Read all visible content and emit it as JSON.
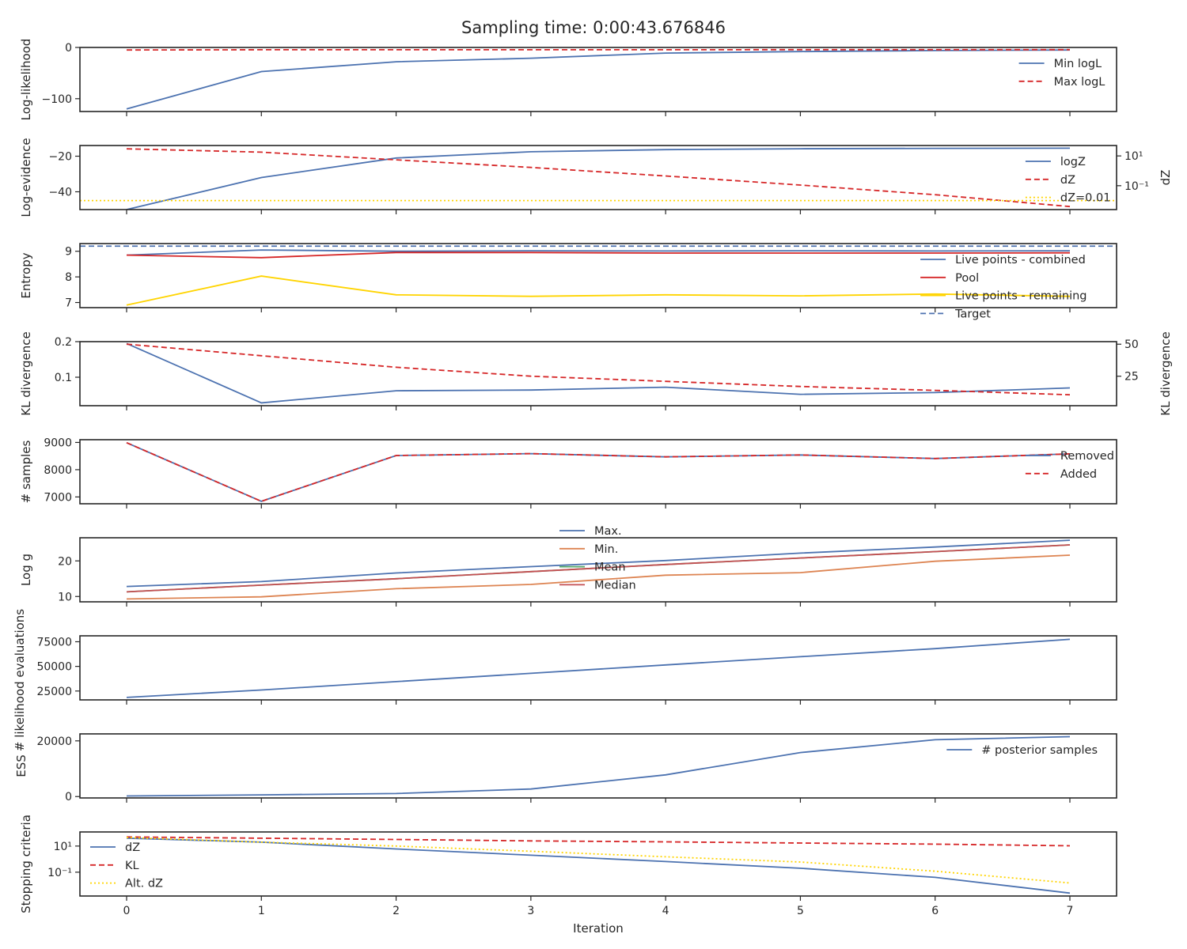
{
  "title": "Sampling time: 0:00:43.676846",
  "xlabel": "Iteration",
  "x_ticks": [
    "0",
    "1",
    "2",
    "3",
    "4",
    "5",
    "6",
    "7"
  ],
  "chart_data": [
    {
      "type": "line",
      "ylabel": "Log-likelihood",
      "ylim": [
        -125,
        0
      ],
      "yticks": [
        {
          "v": 0,
          "label": "0"
        },
        {
          "v": -100,
          "label": "−100"
        }
      ],
      "legend_loc": "right",
      "x": [
        0,
        1,
        2,
        3,
        4,
        5,
        6,
        7
      ],
      "series": [
        {
          "name": "Min logL",
          "color": "#4c72b0",
          "dash": "solid",
          "values": [
            -120,
            -47,
            -28,
            -21,
            -11,
            -8,
            -6,
            -5
          ]
        },
        {
          "name": "Max logL",
          "color": "#d62728",
          "dash": "dashed",
          "values": [
            -5,
            -4.5,
            -4.5,
            -4.5,
            -4.4,
            -4.3,
            -4.3,
            -4.3
          ]
        }
      ]
    },
    {
      "type": "line",
      "ylabel": "Log-evidence",
      "ylim": [
        -50,
        -14
      ],
      "yticks": [
        {
          "v": -20,
          "label": "−20"
        },
        {
          "v": -40,
          "label": "−40"
        }
      ],
      "y2label": "dZ",
      "y2scale": "log",
      "y2lim": [
        0.0025,
        50
      ],
      "y2ticks": [
        {
          "v": 10,
          "label": "10¹"
        },
        {
          "v": 0.1,
          "label": "10⁻¹"
        }
      ],
      "legend_loc": "right",
      "x": [
        0,
        1,
        2,
        3,
        4,
        5,
        6,
        7
      ],
      "series": [
        {
          "name": "logZ",
          "color": "#4c72b0",
          "dash": "solid",
          "axis": "left",
          "values": [
            -50,
            -32,
            -21,
            -17.5,
            -16.3,
            -15.8,
            -15.6,
            -15.5
          ]
        },
        {
          "name": "dZ",
          "color": "#d62728",
          "dash": "dashed",
          "axis": "right",
          "values": [
            30,
            18,
            5.5,
            1.7,
            0.45,
            0.11,
            0.025,
            0.004
          ]
        },
        {
          "name": "dZ=0.01",
          "color": "#ffd400",
          "dash": "dotted",
          "axis": "right",
          "hline": 0.01
        }
      ]
    },
    {
      "type": "line",
      "ylabel": "Entropy",
      "ylim": [
        6.8,
        9.3
      ],
      "yticks": [
        {
          "v": 9,
          "label": "9"
        },
        {
          "v": 8,
          "label": "8"
        },
        {
          "v": 7,
          "label": "7"
        }
      ],
      "legend_loc": "right",
      "x": [
        0,
        1,
        2,
        3,
        4,
        5,
        6,
        7
      ],
      "series": [
        {
          "name": "Live points - combined",
          "color": "#4c72b0",
          "dash": "solid",
          "values": [
            8.85,
            9.05,
            9.0,
            9.02,
            9.01,
            9.02,
            9.01,
            9.02
          ]
        },
        {
          "name": "Pool",
          "color": "#d62728",
          "dash": "solid",
          "values": [
            8.85,
            8.75,
            8.95,
            8.95,
            8.93,
            8.93,
            8.93,
            8.94
          ]
        },
        {
          "name": "Live points - remaining",
          "color": "#ffd400",
          "dash": "solid",
          "values": [
            6.9,
            8.03,
            7.3,
            7.24,
            7.3,
            7.26,
            7.33,
            7.24
          ]
        },
        {
          "name": "Target",
          "color": "#4c72b0",
          "dash": "dashed",
          "hline": 9.2
        }
      ]
    },
    {
      "type": "line",
      "ylabel": "KL divergence",
      "ylim": [
        0.02,
        0.2
      ],
      "yticks": [
        {
          "v": 0.2,
          "label": "0.2"
        },
        {
          "v": 0.1,
          "label": "0.1"
        }
      ],
      "y2label": "KL divergence",
      "y2lim": [
        2,
        52
      ],
      "y2ticks": [
        {
          "v": 50,
          "label": "50"
        },
        {
          "v": 25,
          "label": "25"
        }
      ],
      "x": [
        0,
        1,
        2,
        3,
        4,
        5,
        6,
        7
      ],
      "series": [
        {
          "color": "#4c72b0",
          "dash": "solid",
          "axis": "left",
          "values": [
            0.195,
            0.028,
            0.062,
            0.064,
            0.072,
            0.052,
            0.057,
            0.07
          ]
        },
        {
          "color": "#d62728",
          "dash": "dashed",
          "axis": "right",
          "values": [
            50,
            41,
            32,
            25,
            21,
            17,
            14,
            10.5
          ]
        }
      ]
    },
    {
      "type": "line",
      "ylabel": "# samples",
      "ylim": [
        6750,
        9100
      ],
      "yticks": [
        {
          "v": 9000,
          "label": "9000"
        },
        {
          "v": 8000,
          "label": "8000"
        },
        {
          "v": 7000,
          "label": "7000"
        }
      ],
      "legend_loc": "right",
      "x": [
        0,
        1,
        2,
        3,
        4,
        5,
        6,
        7
      ],
      "series": [
        {
          "name": "Removed",
          "color": "#4c72b0",
          "dash": "solid",
          "values": [
            8990,
            6840,
            8520,
            8590,
            8470,
            8540,
            8410,
            8580
          ]
        },
        {
          "name": "Added",
          "color": "#d62728",
          "dash": "dashed",
          "values": [
            8990,
            6840,
            8520,
            8590,
            8470,
            8540,
            8410,
            8580
          ]
        }
      ]
    },
    {
      "type": "line",
      "ylabel": "Log g",
      "ylim": [
        8.5,
        26.5
      ],
      "yticks": [
        {
          "v": 20,
          "label": "20"
        },
        {
          "v": 10,
          "label": "10"
        }
      ],
      "legend_loc": "upper center",
      "x": [
        0,
        1,
        2,
        3,
        4,
        5,
        6,
        7
      ],
      "series": [
        {
          "name": "Max.",
          "color": "#4c72b0",
          "dash": "solid",
          "values": [
            12.8,
            14.2,
            16.6,
            18.4,
            20.1,
            22.2,
            23.9,
            25.8
          ]
        },
        {
          "name": "Min.",
          "color": "#dd8452",
          "dash": "solid",
          "values": [
            9.3,
            9.9,
            12.2,
            13.4,
            16.0,
            16.7,
            19.9,
            21.6
          ]
        },
        {
          "name": "Mean",
          "color": "#55a868",
          "dash": "solid",
          "values": [
            11.3,
            13.2,
            15.0,
            17.0,
            19.0,
            20.8,
            22.6,
            24.5
          ]
        },
        {
          "name": "Median",
          "color": "#c44e52",
          "dash": "solid",
          "values": [
            11.3,
            13.2,
            15.0,
            17.0,
            19.0,
            20.8,
            22.6,
            24.5
          ]
        }
      ]
    },
    {
      "type": "line",
      "ylabel": "# likelihood evaluations",
      "ylim": [
        16000,
        81000
      ],
      "yticks": [
        {
          "v": 75000,
          "label": "75000"
        },
        {
          "v": 50000,
          "label": "50000"
        },
        {
          "v": 25000,
          "label": "25000"
        }
      ],
      "x": [
        0,
        1,
        2,
        3,
        4,
        5,
        6,
        7
      ],
      "series": [
        {
          "color": "#4c72b0",
          "dash": "solid",
          "values": [
            18500,
            26000,
            34500,
            43000,
            51500,
            59800,
            68000,
            77500
          ]
        }
      ]
    },
    {
      "type": "line",
      "ylabel": "ESS",
      "ylim": [
        -500,
        22500
      ],
      "yticks": [
        {
          "v": 20000,
          "label": "20000"
        },
        {
          "v": 0,
          "label": "0"
        }
      ],
      "legend_loc": "right",
      "x": [
        0,
        1,
        2,
        3,
        4,
        5,
        6,
        7
      ],
      "series": [
        {
          "name": "# posterior samples",
          "color": "#4c72b0",
          "dash": "solid",
          "values": [
            200,
            600,
            1100,
            2700,
            7800,
            15800,
            20400,
            21500
          ]
        }
      ]
    },
    {
      "type": "line",
      "ylabel": "Stopping criteria",
      "yscale": "log",
      "ylim": [
        0.0015,
        120
      ],
      "yticks": [
        {
          "v": 10,
          "label": "10¹"
        },
        {
          "v": 0.1,
          "label": "10⁻¹"
        }
      ],
      "legend_loc": "upper left",
      "x": [
        0,
        1,
        2,
        3,
        4,
        5,
        6,
        7
      ],
      "series": [
        {
          "name": "dZ",
          "color": "#4c72b0",
          "dash": "solid",
          "values": [
            40,
            20,
            6,
            2,
            0.65,
            0.2,
            0.04,
            0.0025
          ]
        },
        {
          "name": "KL",
          "color": "#d62728",
          "dash": "dashed",
          "values": [
            50,
            40,
            32,
            25,
            21,
            17,
            14,
            10.5
          ]
        },
        {
          "name": "Alt. dZ",
          "color": "#ffd400",
          "dash": "dotted",
          "values": [
            45,
            20,
            10,
            4,
            1.5,
            0.6,
            0.12,
            0.015
          ]
        }
      ]
    }
  ]
}
